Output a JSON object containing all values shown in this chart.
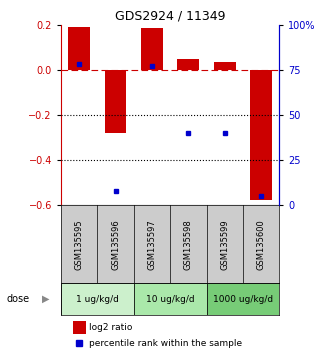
{
  "title": "GDS2924 / 11349",
  "samples": [
    "GSM135595",
    "GSM135596",
    "GSM135597",
    "GSM135598",
    "GSM135599",
    "GSM135600"
  ],
  "log2_ratio": [
    0.19,
    -0.28,
    0.185,
    0.05,
    0.035,
    -0.575
  ],
  "percentile_rank": [
    78,
    8,
    77,
    40,
    40,
    5
  ],
  "dose_groups": [
    {
      "label": "1 ug/kg/d",
      "start": 0,
      "end": 2,
      "color": "#ccf0cc"
    },
    {
      "label": "10 ug/kg/d",
      "start": 2,
      "end": 4,
      "color": "#aae8aa"
    },
    {
      "label": "1000 ug/kg/d",
      "start": 4,
      "end": 6,
      "color": "#77cc77"
    }
  ],
  "ylim_left": [
    -0.6,
    0.2
  ],
  "ylim_right": [
    0,
    100
  ],
  "left_yticks": [
    -0.6,
    -0.4,
    -0.2,
    0.0,
    0.2
  ],
  "right_yticks": [
    0,
    25,
    50,
    75,
    100
  ],
  "right_yticklabels": [
    "0",
    "25",
    "50",
    "75",
    "100%"
  ],
  "bar_color_red": "#cc0000",
  "dot_color_blue": "#0000cc",
  "legend_red_label": "log2 ratio",
  "legend_blue_label": "percentile rank within the sample",
  "sample_bg": "#cccccc",
  "left_axis_color": "#cc0000",
  "right_axis_color": "#0000cc"
}
